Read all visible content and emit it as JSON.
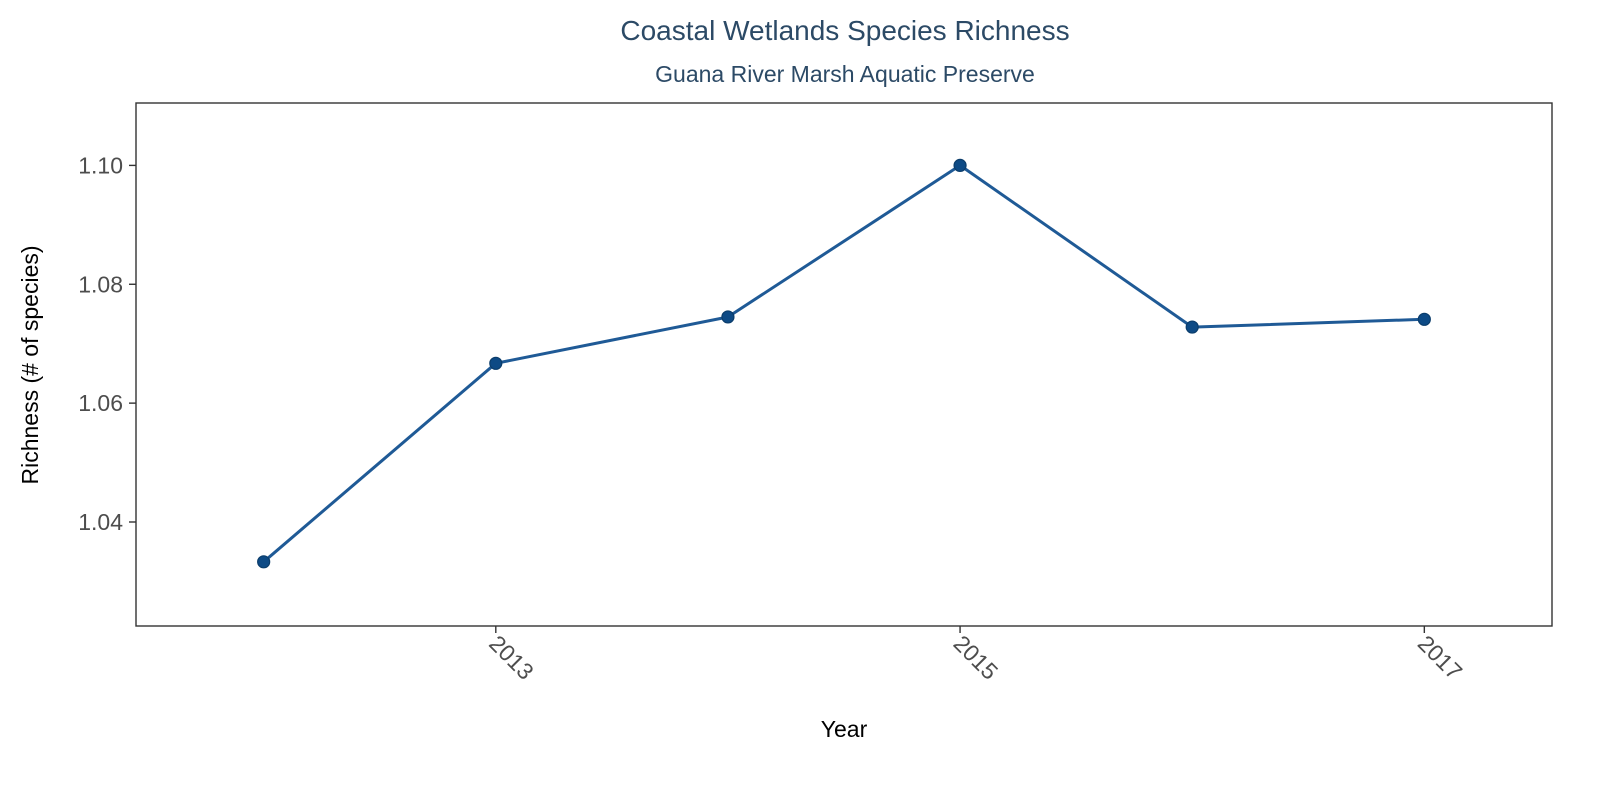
{
  "chart_data": {
    "type": "line",
    "title": "Coastal Wetlands Species Richness",
    "subtitle": "Guana River Marsh Aquatic Preserve",
    "xlabel": "Year",
    "ylabel": "Richness (# of species)",
    "x": [
      2012,
      2013,
      2014,
      2015,
      2016,
      2017
    ],
    "series": [
      {
        "values": [
          1.0333,
          1.0667,
          1.0745,
          1.1,
          1.0728,
          1.0741
        ]
      }
    ],
    "xlim": [
      2011.45,
      2017.55
    ],
    "ylim": [
      1.0225,
      1.1105
    ],
    "xticks": [
      2013,
      2015,
      2017
    ],
    "xtick_labels": [
      "2013",
      "2015",
      "2017"
    ],
    "yticks": [
      1.04,
      1.06,
      1.08,
      1.1
    ],
    "ytick_labels": [
      "1.04",
      "1.06",
      "1.08",
      "1.10"
    ],
    "x_tick_rotation": 45,
    "grid": false,
    "legend": "none",
    "colors": {
      "line": "#1f5a96",
      "point": "#0d4a85",
      "title": "#2c4a66"
    }
  }
}
